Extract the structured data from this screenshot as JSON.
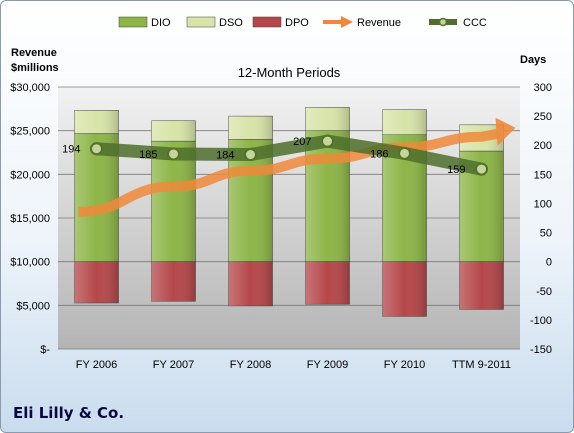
{
  "company": "Eli Lilly & Co.",
  "chart_data": {
    "type": "bar",
    "title": "12-Month Periods",
    "categories": [
      "FY 2006",
      "FY 2007",
      "FY 2008",
      "FY 2009",
      "FY 2010",
      "TTM 9-2011"
    ],
    "left_axis": {
      "label_lines": [
        "Revenue",
        "$millions"
      ],
      "ylim": [
        0,
        30000
      ],
      "tick_labels": [
        "$-",
        "$5,000",
        "$10,000",
        "$15,000",
        "$20,000",
        "$25,000",
        "$30,000"
      ],
      "tick_values": [
        0,
        5000,
        10000,
        15000,
        20000,
        25000,
        30000
      ]
    },
    "right_axis": {
      "label": "Days",
      "ylim": [
        -150,
        300
      ],
      "tick_labels": [
        "-150",
        "-100",
        "-50",
        "0",
        "50",
        "100",
        "150",
        "200",
        "250",
        "300"
      ],
      "tick_values": [
        -150,
        -100,
        -50,
        0,
        50,
        100,
        150,
        200,
        250,
        300
      ]
    },
    "legend_position": "top",
    "series": [
      {
        "name": "DIO",
        "axis": "right",
        "kind": "stacked-bar",
        "color": "#8db547",
        "values": [
          220,
          207,
          210,
          225,
          218,
          190
        ]
      },
      {
        "name": "DSO",
        "axis": "right",
        "kind": "stacked-bar",
        "color": "#d7e4a8",
        "values": [
          40,
          35,
          40,
          40,
          43,
          45
        ]
      },
      {
        "name": "DPO",
        "axis": "right",
        "kind": "stacked-bar",
        "color": "#b5474a",
        "values": [
          -71,
          -68,
          -76,
          -73,
          -94,
          -82
        ]
      },
      {
        "name": "Revenue",
        "axis": "left",
        "kind": "arrow-line",
        "color": "#f0883a",
        "values": [
          15700,
          18600,
          20400,
          21800,
          23100,
          24300
        ]
      },
      {
        "name": "CCC",
        "axis": "right",
        "kind": "line",
        "color": "#4e6e2c",
        "values": [
          194,
          185,
          184,
          207,
          186,
          159
        ],
        "data_labels": [
          "194",
          "185",
          "184",
          "207",
          "186",
          "159"
        ]
      }
    ]
  }
}
